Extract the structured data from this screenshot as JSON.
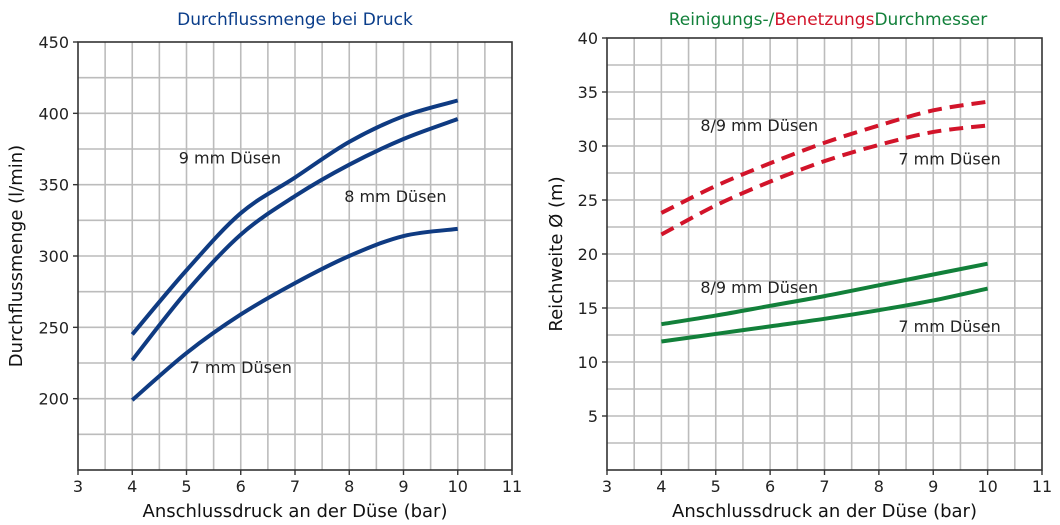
{
  "chart_data": [
    {
      "type": "line",
      "title_parts": [
        {
          "text": "Durchflussmenge bei Druck",
          "color": "#0a3d8a"
        }
      ],
      "xlabel": "Anschlussdruck an der Düse (bar)",
      "ylabel": "Durchflussmenge (l/min)",
      "xlim": [
        3,
        11
      ],
      "ylim": [
        150,
        450
      ],
      "xticks": [
        3,
        4,
        5,
        6,
        7,
        8,
        9,
        10,
        11
      ],
      "yticks": [
        200,
        250,
        300,
        350,
        400,
        450
      ],
      "grid": true,
      "series": [
        {
          "label": "9 mm Düsen",
          "color": "#0f3b82",
          "dash": false,
          "x": [
            4,
            5,
            6,
            7,
            8,
            9,
            10
          ],
          "y": [
            245,
            290,
            330,
            355,
            380,
            398,
            409
          ]
        },
        {
          "label": "8 mm Düsen",
          "color": "#0f3b82",
          "dash": false,
          "x": [
            4,
            5,
            6,
            7,
            8,
            9,
            10
          ],
          "y": [
            227,
            275,
            315,
            342,
            364,
            382,
            396
          ]
        },
        {
          "label": "7 mm Düsen",
          "color": "#0f3b82",
          "dash": false,
          "x": [
            4,
            5,
            6,
            7,
            8,
            9,
            10
          ],
          "y": [
            199,
            232,
            259,
            281,
            300,
            314,
            319
          ]
        }
      ],
      "annotations": [
        {
          "text": "9 mm Düsen",
          "x": 5.8,
          "y": 365
        },
        {
          "text": "8 mm Düsen",
          "x": 8.85,
          "y": 338
        },
        {
          "text": "7 mm Düsen",
          "x": 6.0,
          "y": 218
        }
      ]
    },
    {
      "type": "line",
      "title_parts": [
        {
          "text": "Reinigungs-/",
          "color": "#12803a"
        },
        {
          "text": "Benetzungs",
          "color": "#d2142a"
        },
        {
          "text": "Durchmesser",
          "color": "#12803a"
        }
      ],
      "xlabel": "Anschlussdruck an der Düse (bar)",
      "ylabel": "Reichweite Ø (m)",
      "xlim": [
        3,
        11
      ],
      "ylim": [
        0,
        40
      ],
      "xticks": [
        3,
        4,
        5,
        6,
        7,
        8,
        9,
        10,
        11
      ],
      "yticks": [
        5,
        10,
        15,
        20,
        25,
        30,
        35,
        40
      ],
      "grid": true,
      "series": [
        {
          "label": "8/9 mm Düsen",
          "color": "#d2142a",
          "dash": true,
          "x": [
            4,
            5,
            6,
            7,
            8,
            9,
            10
          ],
          "y": [
            23.8,
            26.3,
            28.4,
            30.3,
            31.9,
            33.3,
            34.1
          ]
        },
        {
          "label": "7 mm Düsen",
          "color": "#d2142a",
          "dash": true,
          "x": [
            4,
            5,
            6,
            7,
            8,
            9,
            10
          ],
          "y": [
            21.8,
            24.5,
            26.7,
            28.6,
            30.1,
            31.3,
            31.9
          ]
        },
        {
          "label": "8/9 mm Düsen",
          "color": "#12803a",
          "dash": false,
          "x": [
            4,
            5,
            6,
            7,
            8,
            9,
            10
          ],
          "y": [
            13.5,
            14.3,
            15.2,
            16.1,
            17.1,
            18.1,
            19.1
          ]
        },
        {
          "label": "7 mm Düsen",
          "color": "#12803a",
          "dash": false,
          "x": [
            4,
            5,
            6,
            7,
            8,
            9,
            10
          ],
          "y": [
            11.9,
            12.6,
            13.3,
            14.0,
            14.8,
            15.7,
            16.8
          ]
        }
      ],
      "annotations": [
        {
          "text": "8/9 mm Düsen",
          "x": 5.8,
          "y": 31.4
        },
        {
          "text": "7 mm Düsen",
          "x": 9.3,
          "y": 28.3
        },
        {
          "text": "8/9 mm Düsen",
          "x": 5.8,
          "y": 16.4
        },
        {
          "text": "7 mm Düsen",
          "x": 9.3,
          "y": 12.8
        }
      ]
    }
  ]
}
